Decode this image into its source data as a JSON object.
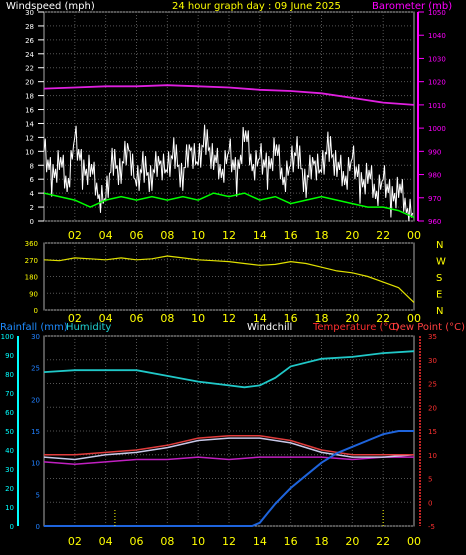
{
  "header": {
    "windspeed_label": "Windspeed (mph)",
    "title": "24 hour graph day : 09 June 2025",
    "barometer_label": "Barometer (mb)"
  },
  "direction_labels": [
    "N",
    "W",
    "S",
    "E",
    "N"
  ],
  "bottom_header": {
    "rain_label": "Rainfall (mm)",
    "humidity_label": "Humidity",
    "windchill_label": "Windchill",
    "temp_label": "Temperature (°C)",
    "dew_label": "Dew Point (°C)"
  },
  "colors": {
    "wind": "#ffffff",
    "gust": "#ffffff",
    "avg_wind": "#00ff00",
    "barometer": "#e020e0",
    "direction": "#e0e000",
    "rain": "#1e64dc",
    "humidity": "#20c8c8",
    "temperature": "#e03c3c",
    "dewpoint": "#c020c0",
    "windchill": "#c8c8e8",
    "axis_yellow": "#ffff00",
    "axis_cyan": "#00ffff",
    "axis_red": "#ff3030",
    "axis_magenta": "#ff00ff"
  },
  "chart_data": [
    {
      "type": "line",
      "x_ticks": [
        "02",
        "04",
        "06",
        "08",
        "10",
        "12",
        "14",
        "16",
        "18",
        "20",
        "22",
        "00"
      ],
      "y_left": {
        "label": "Windspeed (mph)",
        "range": [
          0,
          30
        ],
        "ticks": [
          0,
          2,
          4,
          6,
          8,
          10,
          12,
          14,
          16,
          18,
          20,
          22,
          24,
          26,
          28,
          30
        ]
      },
      "y_right": {
        "label": "Barometer (mb)",
        "range": [
          960,
          1050
        ],
        "ticks": [
          960,
          970,
          980,
          990,
          1000,
          1010,
          1020,
          1030,
          1040,
          1050
        ]
      },
      "grid": true,
      "series": [
        {
          "name": "Windspeed",
          "axis": "left",
          "x": [
            0,
            0.5,
            1,
            1.5,
            2,
            2.5,
            3,
            3.5,
            4,
            4.5,
            5,
            5.5,
            6,
            6.5,
            7,
            7.5,
            8,
            8.5,
            9,
            9.5,
            10,
            10.5,
            11,
            11.5,
            12,
            12.5,
            13,
            13.5,
            14,
            14.5,
            15,
            15.5,
            16,
            16.5,
            17,
            17.5,
            18,
            18.5,
            19,
            19.5,
            20,
            20.5,
            21,
            21.5,
            22,
            22.5,
            23,
            23.5,
            24
          ],
          "y": [
            10,
            6,
            9,
            5,
            12,
            7,
            8,
            4,
            3,
            9,
            7,
            11,
            5,
            8,
            6,
            9,
            7,
            10,
            6,
            11,
            8,
            12,
            9,
            7,
            10,
            6,
            13,
            8,
            9,
            7,
            11,
            6,
            8,
            10,
            5,
            9,
            7,
            11,
            8,
            6,
            9,
            5,
            7,
            4,
            6,
            3,
            5,
            2,
            1
          ]
        },
        {
          "name": "Average wind",
          "axis": "left",
          "x": [
            0,
            1,
            2,
            3,
            4,
            5,
            6,
            7,
            8,
            9,
            10,
            11,
            12,
            13,
            14,
            15,
            16,
            17,
            18,
            19,
            20,
            21,
            22,
            23,
            24
          ],
          "y": [
            4,
            3.5,
            3,
            2,
            3,
            3.5,
            3,
            3.5,
            3,
            3.5,
            3,
            4,
            3.5,
            4,
            3,
            3.5,
            2.5,
            3,
            3.5,
            3,
            2.5,
            2,
            2,
            1.5,
            0.5
          ]
        },
        {
          "name": "Barometer",
          "axis": "right",
          "x": [
            0,
            2,
            4,
            6,
            8,
            10,
            12,
            14,
            16,
            18,
            20,
            22,
            24
          ],
          "y": [
            1017,
            1017.5,
            1018,
            1018,
            1018.5,
            1018,
            1017.5,
            1016.5,
            1016,
            1015,
            1013,
            1011,
            1010
          ]
        }
      ]
    },
    {
      "type": "line",
      "x_ticks": [
        "02",
        "04",
        "06",
        "08",
        "10",
        "12",
        "14",
        "16",
        "18",
        "20",
        "22",
        "00"
      ],
      "y_left": {
        "range": [
          0,
          360
        ],
        "ticks": [
          0,
          90,
          180,
          270,
          360
        ]
      },
      "grid": true,
      "series": [
        {
          "name": "Wind direction",
          "x": [
            0,
            1,
            2,
            3,
            4,
            5,
            6,
            7,
            8,
            9,
            10,
            11,
            12,
            13,
            14,
            15,
            16,
            17,
            18,
            19,
            20,
            21,
            22,
            23,
            24
          ],
          "y": [
            270,
            265,
            280,
            275,
            270,
            280,
            270,
            275,
            290,
            280,
            270,
            265,
            260,
            250,
            240,
            245,
            260,
            250,
            230,
            210,
            200,
            180,
            150,
            120,
            40
          ]
        }
      ]
    },
    {
      "type": "line",
      "x_ticks": [
        "02",
        "04",
        "06",
        "08",
        "10",
        "12",
        "14",
        "16",
        "18",
        "20",
        "22",
        "00"
      ],
      "y_left_outer": {
        "label": "Humidity",
        "range": [
          0,
          100
        ],
        "ticks": [
          0,
          10,
          20,
          30,
          40,
          50,
          60,
          70,
          80,
          90,
          100
        ]
      },
      "y_left_inner": {
        "label": "Rainfall (mm)",
        "range": [
          0,
          30
        ],
        "ticks": [
          0,
          5,
          10,
          15,
          20,
          25,
          30
        ]
      },
      "y_right": {
        "label": "Temperature (°C)",
        "range": [
          -5,
          35
        ],
        "ticks": [
          -5,
          0,
          5,
          10,
          15,
          20,
          25,
          30,
          35
        ]
      },
      "grid": true,
      "series": [
        {
          "name": "Humidity",
          "axis": "left_outer",
          "x": [
            0,
            2,
            4,
            6,
            8,
            10,
            12,
            13,
            14,
            15,
            16,
            18,
            20,
            22,
            24
          ],
          "y": [
            81,
            82,
            82,
            82,
            79,
            76,
            74,
            73,
            74,
            78,
            84,
            88,
            89,
            91,
            92
          ]
        },
        {
          "name": "Temperature",
          "axis": "right",
          "x": [
            0,
            2,
            4,
            6,
            8,
            10,
            12,
            14,
            16,
            18,
            20,
            22,
            24
          ],
          "y": [
            10,
            10,
            10.5,
            11,
            12,
            13.5,
            14,
            14,
            13,
            11,
            10,
            10,
            10
          ]
        },
        {
          "name": "Windchill",
          "axis": "right",
          "x": [
            0,
            2,
            4,
            6,
            8,
            10,
            12,
            14,
            16,
            18,
            20,
            22,
            24
          ],
          "y": [
            9.5,
            9,
            10,
            10.5,
            11.5,
            13,
            13.5,
            13.5,
            12.5,
            10.5,
            9.5,
            9.5,
            10
          ]
        },
        {
          "name": "Dew Point",
          "axis": "right",
          "x": [
            0,
            2,
            4,
            6,
            8,
            10,
            12,
            14,
            16,
            18,
            20,
            22,
            24
          ],
          "y": [
            8.5,
            8,
            8.5,
            9,
            9,
            9.5,
            9,
            9.5,
            9.5,
            9.5,
            9,
            9.5,
            9.5
          ]
        },
        {
          "name": "Rainfall",
          "axis": "left_inner",
          "x": [
            0,
            2,
            4,
            6,
            8,
            10,
            12,
            13.5,
            14,
            14.5,
            15,
            16,
            17,
            18,
            19,
            20,
            21,
            22,
            23,
            24
          ],
          "y": [
            0,
            0,
            0,
            0,
            0,
            0,
            0,
            0,
            0.5,
            2,
            3.5,
            6,
            8,
            10,
            11.5,
            12.5,
            13.5,
            14.5,
            15,
            15
          ]
        }
      ]
    }
  ]
}
